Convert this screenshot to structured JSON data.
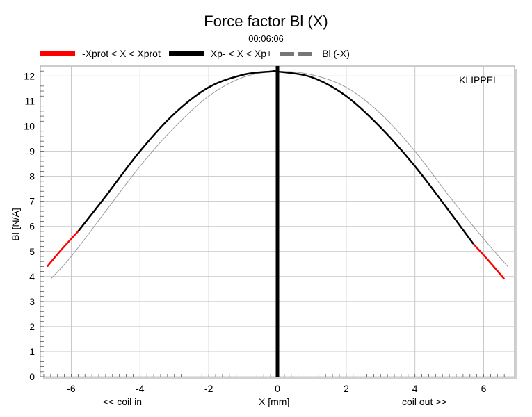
{
  "title": "Force factor Bl (X)",
  "subtitle": "00:06:06",
  "watermark": "KLIPPEL",
  "legend": [
    {
      "label": "-Xprot < X < Xprot",
      "color": "#ff0000",
      "style": "solid"
    },
    {
      "label": "Xp- < X < Xp+",
      "color": "#000000",
      "style": "solid"
    },
    {
      "label": "Bl (-X)",
      "color": "#808080",
      "style": "dashed"
    }
  ],
  "axis_labels": {
    "ylabel": "Bl [N/A]",
    "xlabel": "X [mm]",
    "xlabel_left": "<< coil in",
    "xlabel_right": "coil out >>"
  },
  "chart_data": {
    "type": "line",
    "title": "Force factor Bl (X)",
    "subtitle": "00:06:06",
    "xlabel": "X [mm]",
    "ylabel": "Bl [N/A]",
    "xlim": [
      -6.9,
      6.9
    ],
    "ylim": [
      0,
      12.4
    ],
    "xticks": [
      -6,
      -4,
      -2,
      0,
      2,
      4,
      6
    ],
    "yticks": [
      0,
      1,
      2,
      3,
      4,
      5,
      6,
      7,
      8,
      9,
      10,
      11,
      12
    ],
    "grid": true,
    "legend_position": "top",
    "vertical_marker_x": 0,
    "series": [
      {
        "name": "Xp- < X < Xp+",
        "color": "#000000",
        "x": [
          -5.8,
          -5.0,
          -4.0,
          -3.0,
          -2.0,
          -1.0,
          -0.2,
          0.0,
          1.0,
          2.0,
          3.0,
          4.0,
          5.0,
          5.7
        ],
        "y": [
          5.8,
          7.2,
          9.0,
          10.5,
          11.55,
          12.05,
          12.18,
          12.18,
          11.95,
          11.2,
          9.95,
          8.4,
          6.6,
          5.3
        ]
      },
      {
        "name": "-Xprot < X < Xprot",
        "color": "#ff0000",
        "x": [
          -6.7,
          -6.3,
          -5.8,
          5.7,
          6.1,
          6.6
        ],
        "y": [
          4.4,
          5.05,
          5.8,
          5.3,
          4.7,
          3.9
        ]
      },
      {
        "name": "Bl (-X)",
        "color": "#808080",
        "x": [
          -6.6,
          -6.0,
          -5.0,
          -4.0,
          -3.0,
          -2.0,
          -1.0,
          0.0,
          1.0,
          2.0,
          3.0,
          4.0,
          5.0,
          6.0,
          6.7
        ],
        "y": [
          3.9,
          4.8,
          6.6,
          8.4,
          9.95,
          11.2,
          11.95,
          12.18,
          12.05,
          11.55,
          10.5,
          9.0,
          7.2,
          5.5,
          4.4
        ]
      }
    ]
  }
}
